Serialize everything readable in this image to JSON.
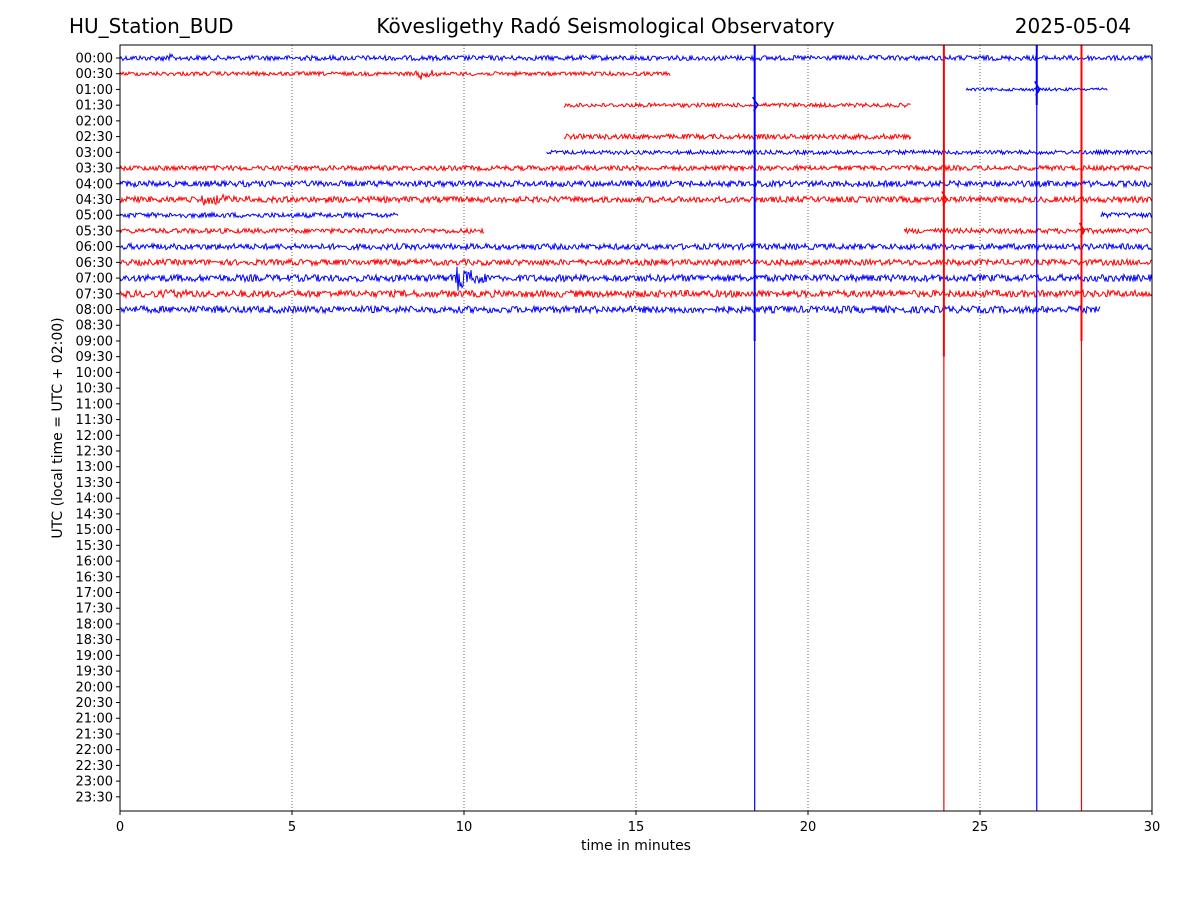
{
  "header": {
    "station": "HU_Station_BUD",
    "observatory": "Köveslige­thy Radó Seismological Observatory",
    "date": "2025-05-04"
  },
  "chart_data": {
    "type": "line",
    "xlabel": "time in minutes",
    "ylabel": "UTC (local time = UTC + 02:00)",
    "xlim": [
      0,
      30
    ],
    "x_ticks": [
      0,
      5,
      10,
      15,
      20,
      25,
      30
    ],
    "x_tick_labels": [
      "0",
      "5",
      "10",
      "15",
      "20",
      "25",
      "30"
    ],
    "grid": "vertical dotted at x ticks",
    "row_labels": [
      "00:00",
      "00:30",
      "01:00",
      "01:30",
      "02:00",
      "02:30",
      "03:00",
      "03:30",
      "04:00",
      "04:30",
      "05:00",
      "05:30",
      "06:00",
      "06:30",
      "07:00",
      "07:30",
      "08:00",
      "08:30",
      "09:00",
      "09:30",
      "10:00",
      "10:30",
      "11:00",
      "11:30",
      "12:00",
      "12:30",
      "13:00",
      "13:30",
      "14:00",
      "14:30",
      "15:00",
      "15:30",
      "16:00",
      "16:30",
      "17:00",
      "17:30",
      "18:00",
      "18:30",
      "19:00",
      "19:30",
      "20:00",
      "20:30",
      "21:00",
      "21:30",
      "22:00",
      "22:30",
      "23:00",
      "23:30"
    ],
    "colors": {
      "blue": "#0000ff",
      "red": "#ff0000"
    },
    "traces": [
      {
        "row": "00:00",
        "color": "blue",
        "segments": [
          [
            0,
            30
          ]
        ],
        "noise": 2.5,
        "events": [
          {
            "t": 1.3,
            "amp": 6,
            "dur": 0.4
          }
        ]
      },
      {
        "row": "00:30",
        "color": "red",
        "segments": [
          [
            0,
            16.0
          ]
        ],
        "noise": 2.0,
        "events": [
          {
            "t": 8.75,
            "amp": 7,
            "dur": 0.6
          }
        ]
      },
      {
        "row": "01:00",
        "color": "blue",
        "segments": [
          [
            24.6,
            28.7
          ]
        ],
        "noise": 1.5,
        "events": []
      },
      {
        "row": "01:30",
        "color": "red",
        "segments": [
          [
            12.9,
            23.0
          ]
        ],
        "noise": 2.0,
        "events": []
      },
      {
        "row": "02:00",
        "color": "blue",
        "segments": [],
        "noise": 0,
        "events": []
      },
      {
        "row": "02:30",
        "color": "red",
        "segments": [
          [
            12.9,
            23.0
          ]
        ],
        "noise": 2.5,
        "events": []
      },
      {
        "row": "03:00",
        "color": "blue",
        "segments": [
          [
            12.4,
            30
          ]
        ],
        "noise": 2.0,
        "events": []
      },
      {
        "row": "03:30",
        "color": "red",
        "segments": [
          [
            0,
            30
          ]
        ],
        "noise": 2.5,
        "events": []
      },
      {
        "row": "04:00",
        "color": "blue",
        "segments": [
          [
            0,
            30
          ]
        ],
        "noise": 3.0,
        "events": []
      },
      {
        "row": "04:30",
        "color": "red",
        "segments": [
          [
            0,
            30
          ]
        ],
        "noise": 3.0,
        "events": [
          {
            "t": 2.5,
            "amp": 5,
            "dur": 1.2
          }
        ]
      },
      {
        "row": "05:00",
        "color": "blue",
        "segments": [
          [
            0,
            8.1
          ],
          [
            28.5,
            30
          ]
        ],
        "noise": 2.5,
        "events": []
      },
      {
        "row": "05:30",
        "color": "red",
        "segments": [
          [
            0,
            10.6
          ],
          [
            22.8,
            30
          ]
        ],
        "noise": 2.5,
        "events": []
      },
      {
        "row": "06:00",
        "color": "blue",
        "segments": [
          [
            0,
            30
          ]
        ],
        "noise": 3.0,
        "events": []
      },
      {
        "row": "06:30",
        "color": "red",
        "segments": [
          [
            0,
            30
          ]
        ],
        "noise": 3.0,
        "events": []
      },
      {
        "row": "07:00",
        "color": "blue",
        "segments": [
          [
            0,
            30
          ]
        ],
        "noise": 3.5,
        "events": [
          {
            "t": 9.9,
            "amp": 18,
            "dur": 0.8
          }
        ]
      },
      {
        "row": "07:30",
        "color": "red",
        "segments": [
          [
            0,
            30
          ]
        ],
        "noise": 3.5,
        "events": [
          {
            "t": 1.5,
            "amp": 5,
            "dur": 0.8
          }
        ]
      },
      {
        "row": "08:00",
        "color": "blue",
        "segments": [
          [
            0,
            28.5
          ]
        ],
        "noise": 3.5,
        "events": []
      }
    ],
    "spikes": [
      {
        "t": 18.45,
        "color": "blue",
        "from_row": "00:00",
        "to_row": "09:00",
        "amp_row": "01:30",
        "tail_to_bottom": true
      },
      {
        "t": 23.95,
        "color": "red",
        "from_row": "00:00",
        "to_row": "09:30",
        "amp_row": "04:30",
        "tail_to_bottom": true
      },
      {
        "t": 26.65,
        "color": "blue",
        "from_row": "00:00",
        "to_row": "01:30",
        "amp_row": "01:00",
        "tail_to_bottom": true
      },
      {
        "t": 27.95,
        "color": "red",
        "from_row": "00:00",
        "to_row": "09:00",
        "amp_row": "05:30",
        "tail_to_bottom": true
      }
    ]
  }
}
